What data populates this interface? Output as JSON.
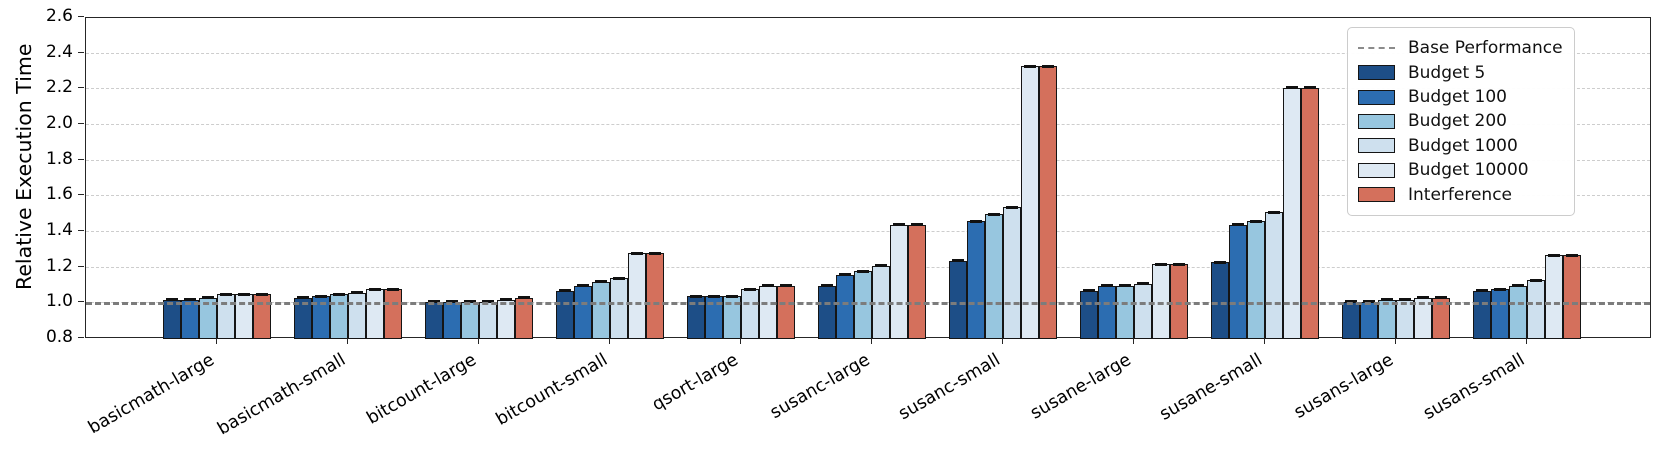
{
  "chart_data": {
    "type": "bar",
    "title": "",
    "xlabel": "",
    "ylabel": "Relative Execution Time",
    "ylim": [
      0.8,
      2.6
    ],
    "ytick_step": 0.2,
    "yticks": [
      "0.8",
      "1.0",
      "1.2",
      "1.4",
      "1.6",
      "1.8",
      "2.0",
      "2.2",
      "2.4",
      "2.6"
    ],
    "grid": "horizontal-dashed",
    "legend_position": "upper-right",
    "baseline": {
      "label": "Base Performance",
      "value": 1.0,
      "color": "#7c7c7c",
      "style": "dashed"
    },
    "categories": [
      "basicmath-large",
      "basicmath-small",
      "bitcount-large",
      "bitcount-small",
      "qsort-large",
      "susanc-large",
      "susanc-small",
      "susane-large",
      "susane-small",
      "susans-large",
      "susans-small"
    ],
    "series": [
      {
        "name": "Budget 5",
        "color": "#1d4e87",
        "values": [
          1.02,
          1.03,
          1.01,
          1.07,
          1.04,
          1.1,
          1.24,
          1.07,
          1.23,
          1.01,
          1.07
        ]
      },
      {
        "name": "Budget 100",
        "color": "#2c6db1",
        "values": [
          1.02,
          1.04,
          1.01,
          1.1,
          1.04,
          1.16,
          1.46,
          1.1,
          1.44,
          1.01,
          1.08
        ]
      },
      {
        "name": "Budget 200",
        "color": "#97c6df",
        "values": [
          1.03,
          1.05,
          1.01,
          1.12,
          1.04,
          1.18,
          1.5,
          1.1,
          1.46,
          1.02,
          1.1
        ]
      },
      {
        "name": "Budget 1000",
        "color": "#cee0ee",
        "values": [
          1.05,
          1.06,
          1.01,
          1.14,
          1.08,
          1.21,
          1.54,
          1.11,
          1.51,
          1.02,
          1.13
        ]
      },
      {
        "name": "Budget 10000",
        "color": "#dee9f3",
        "values": [
          1.05,
          1.08,
          1.02,
          1.28,
          1.1,
          1.44,
          2.33,
          1.22,
          2.21,
          1.03,
          1.27
        ]
      },
      {
        "name": "Interference",
        "color": "#d4705c",
        "values": [
          1.05,
          1.08,
          1.03,
          1.28,
          1.1,
          1.44,
          2.33,
          1.22,
          2.21,
          1.03,
          1.27
        ]
      }
    ]
  }
}
